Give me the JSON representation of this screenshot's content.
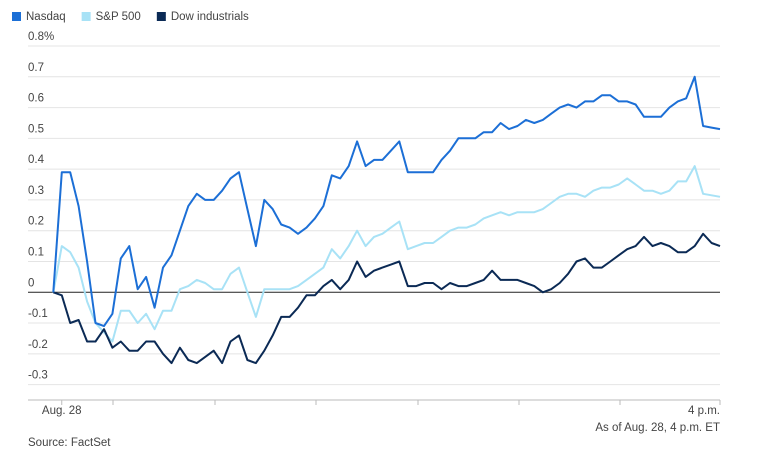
{
  "chart_data": {
    "type": "line",
    "source": "Source: FactSet",
    "annotation": "As of Aug. 28, 4 p.m. ET",
    "legend": "top-left",
    "grid": true,
    "x": [
      -5,
      0,
      5,
      10,
      15,
      20,
      25,
      30,
      35,
      40,
      45,
      50,
      55,
      60,
      65,
      70,
      75,
      80,
      85,
      90,
      95,
      100,
      105,
      110,
      115,
      120,
      125,
      130,
      135,
      140,
      145,
      150,
      155,
      160,
      165,
      170,
      175,
      180,
      185,
      190,
      195,
      200,
      205,
      210,
      215,
      220,
      225,
      230,
      235,
      240,
      245,
      250,
      255,
      260,
      265,
      270,
      275,
      280,
      285,
      290,
      295,
      300,
      305,
      310,
      315,
      320,
      325,
      330,
      335,
      340,
      345,
      350,
      355,
      360,
      365,
      370,
      375,
      380,
      385,
      390
    ],
    "xlim": [
      -20,
      390
    ],
    "xticks": [
      {
        "value": 0,
        "label": "Aug. 28"
      },
      {
        "value": 390,
        "label": "4 p.m."
      }
    ],
    "ylim": [
      -0.35,
      0.8
    ],
    "yticks": [
      -0.3,
      -0.2,
      -0.1,
      0,
      0.1,
      0.2,
      0.3,
      0.4,
      0.5,
      0.6,
      0.7,
      {
        "value": 0.8,
        "label": "0.8%"
      }
    ],
    "series": [
      {
        "name": "Nasdaq",
        "color": "#1c6fd6",
        "values": [
          0,
          0.39,
          0.39,
          0.28,
          0.1,
          -0.1,
          -0.11,
          -0.07,
          0.11,
          0.15,
          0.01,
          0.05,
          -0.05,
          0.08,
          0.12,
          0.2,
          0.28,
          0.32,
          0.3,
          0.3,
          0.33,
          0.37,
          0.39,
          0.27,
          0.15,
          0.3,
          0.27,
          0.22,
          0.21,
          0.19,
          0.21,
          0.24,
          0.28,
          0.38,
          0.37,
          0.41,
          0.49,
          0.41,
          0.43,
          0.43,
          0.46,
          0.49,
          0.39,
          0.39,
          0.39,
          0.39,
          0.43,
          0.46,
          0.5,
          0.5,
          0.5,
          0.52,
          0.52,
          0.55,
          0.53,
          0.54,
          0.56,
          0.55,
          0.56,
          0.58,
          0.6,
          0.61,
          0.6,
          0.62,
          0.62,
          0.64,
          0.64,
          0.62,
          0.62,
          0.61,
          0.57,
          0.57,
          0.57,
          0.6,
          0.62,
          0.63,
          0.7,
          0.54,
          0.535,
          0.53
        ]
      },
      {
        "name": "S&P 500",
        "color": "#a8e2f6",
        "values": [
          0,
          0.15,
          0.13,
          0.08,
          -0.03,
          -0.1,
          -0.13,
          -0.16,
          -0.06,
          -0.06,
          -0.1,
          -0.07,
          -0.12,
          -0.06,
          -0.06,
          0.01,
          0.02,
          0.04,
          0.03,
          0.01,
          0.01,
          0.06,
          0.08,
          0,
          -0.08,
          0.01,
          0.01,
          0.01,
          0.01,
          0.02,
          0.04,
          0.06,
          0.08,
          0.14,
          0.11,
          0.15,
          0.2,
          0.15,
          0.18,
          0.19,
          0.21,
          0.23,
          0.14,
          0.15,
          0.16,
          0.16,
          0.18,
          0.2,
          0.21,
          0.21,
          0.22,
          0.24,
          0.25,
          0.26,
          0.25,
          0.26,
          0.26,
          0.26,
          0.27,
          0.29,
          0.31,
          0.32,
          0.32,
          0.31,
          0.33,
          0.34,
          0.34,
          0.35,
          0.37,
          0.35,
          0.33,
          0.33,
          0.32,
          0.33,
          0.36,
          0.36,
          0.41,
          0.32,
          0.315,
          0.31
        ]
      },
      {
        "name": "Dow industrials",
        "color": "#0b2a55",
        "values": [
          0,
          -0.01,
          -0.1,
          -0.09,
          -0.16,
          -0.16,
          -0.12,
          -0.18,
          -0.16,
          -0.19,
          -0.19,
          -0.16,
          -0.16,
          -0.2,
          -0.23,
          -0.18,
          -0.22,
          -0.23,
          -0.21,
          -0.19,
          -0.23,
          -0.16,
          -0.14,
          -0.22,
          -0.23,
          -0.19,
          -0.14,
          -0.08,
          -0.08,
          -0.05,
          -0.01,
          -0.01,
          0.02,
          0.04,
          0.01,
          0.04,
          0.1,
          0.05,
          0.07,
          0.08,
          0.09,
          0.1,
          0.02,
          0.02,
          0.03,
          0.03,
          0.01,
          0.03,
          0.02,
          0.02,
          0.03,
          0.04,
          0.07,
          0.04,
          0.04,
          0.04,
          0.03,
          0.02,
          0,
          0.01,
          0.03,
          0.06,
          0.1,
          0.11,
          0.08,
          0.08,
          0.1,
          0.12,
          0.14,
          0.15,
          0.18,
          0.15,
          0.16,
          0.15,
          0.13,
          0.13,
          0.15,
          0.19,
          0.16,
          0.15
        ]
      }
    ]
  }
}
